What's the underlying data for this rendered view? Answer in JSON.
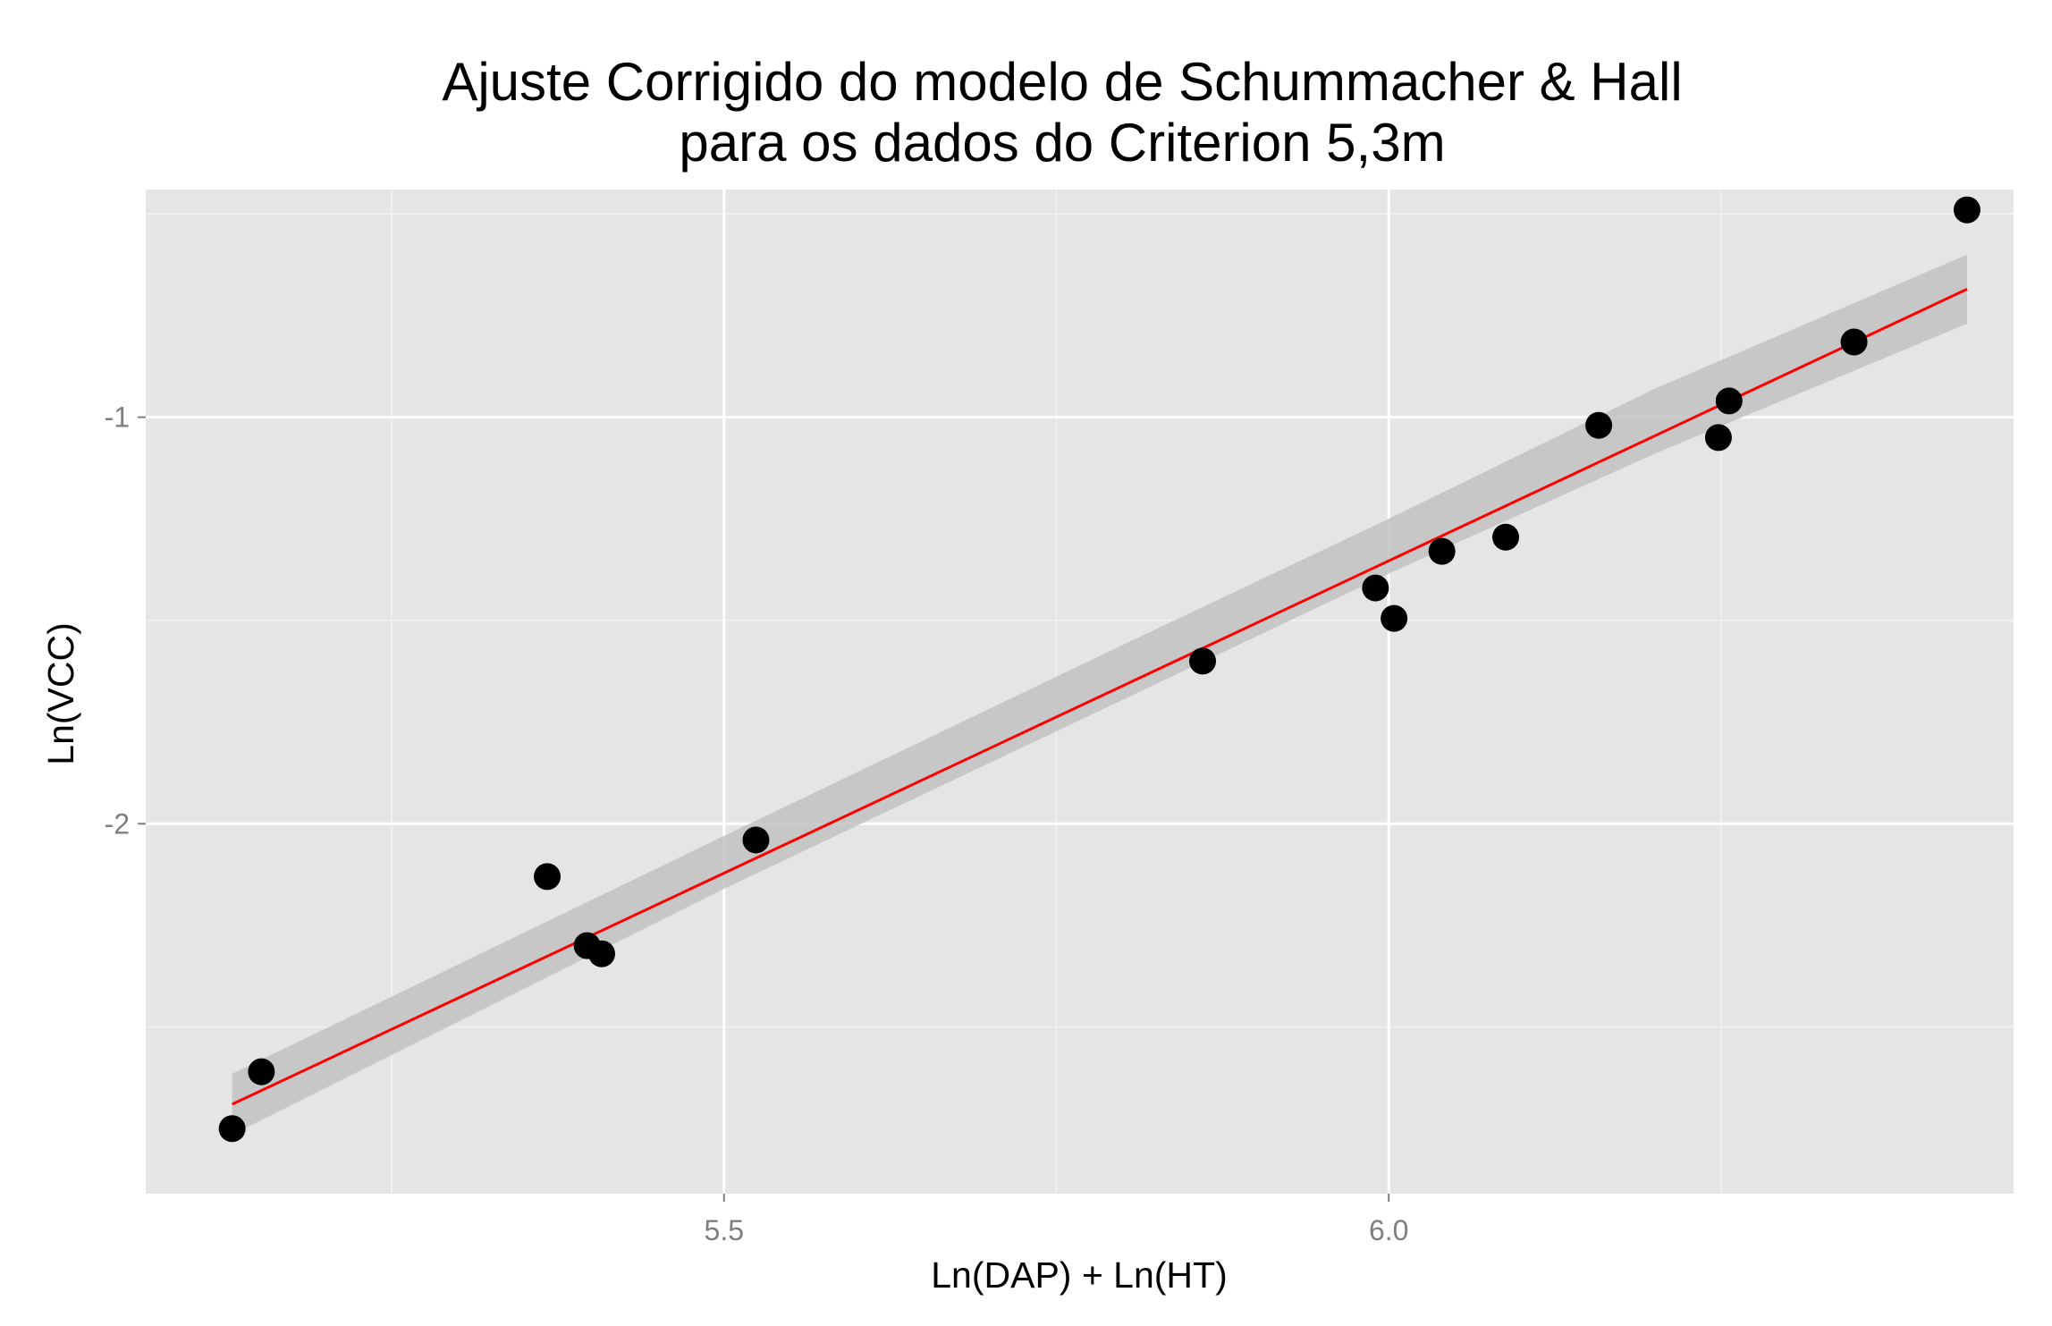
{
  "chart_data": {
    "type": "scatter",
    "title": [
      "Ajuste Corrigido  do modelo de Schummacher & Hall",
      "para os dados do Criterion 5,3m"
    ],
    "xlabel": "Ln(DAP) + Ln(HT)",
    "ylabel": "Ln(VCC)",
    "xlim": [
      5.065,
      6.47
    ],
    "ylim": [
      -2.91,
      -0.44
    ],
    "x_ticks": [
      5.5,
      6.0
    ],
    "x_tick_labels": [
      "5.5",
      "6.0"
    ],
    "x_minor": [
      5.25,
      5.75,
      6.25
    ],
    "y_ticks": [
      -1,
      -2
    ],
    "y_tick_labels": [
      "-1",
      "-2"
    ],
    "y_minor": [
      -0.5,
      -1.5,
      -2.5
    ],
    "grid": true,
    "legend": "none",
    "colors": {
      "panel": "#e5e5e5",
      "grid_major": "#ffffff",
      "grid_minor": "#f2f2f2",
      "points": "#000000",
      "fit_line": "#ff0000",
      "confidence_band": "#c2c2c2"
    },
    "points": [
      {
        "x": 5.13,
        "y": -2.75
      },
      {
        "x": 5.152,
        "y": -2.61
      },
      {
        "x": 5.367,
        "y": -2.13
      },
      {
        "x": 5.397,
        "y": -2.3
      },
      {
        "x": 5.408,
        "y": -2.32
      },
      {
        "x": 5.524,
        "y": -2.04
      },
      {
        "x": 5.86,
        "y": -1.6
      },
      {
        "x": 5.99,
        "y": -1.42
      },
      {
        "x": 6.004,
        "y": -1.495
      },
      {
        "x": 6.04,
        "y": -1.33
      },
      {
        "x": 6.088,
        "y": -1.295
      },
      {
        "x": 6.158,
        "y": -1.02
      },
      {
        "x": 6.248,
        "y": -1.05
      },
      {
        "x": 6.256,
        "y": -0.96
      },
      {
        "x": 6.35,
        "y": -0.815
      },
      {
        "x": 6.435,
        "y": -0.49
      }
    ],
    "fit": {
      "x": [
        5.13,
        6.435
      ],
      "y": [
        -2.69,
        -0.685
      ]
    },
    "band": {
      "x": [
        5.13,
        5.5,
        5.8,
        6.0,
        6.2,
        6.435
      ],
      "lower": [
        -2.765,
        -2.16,
        -1.695,
        -1.385,
        -1.09,
        -0.77
      ],
      "upper": [
        -2.615,
        -2.03,
        -1.56,
        -1.25,
        -0.93,
        -0.6
      ]
    }
  }
}
